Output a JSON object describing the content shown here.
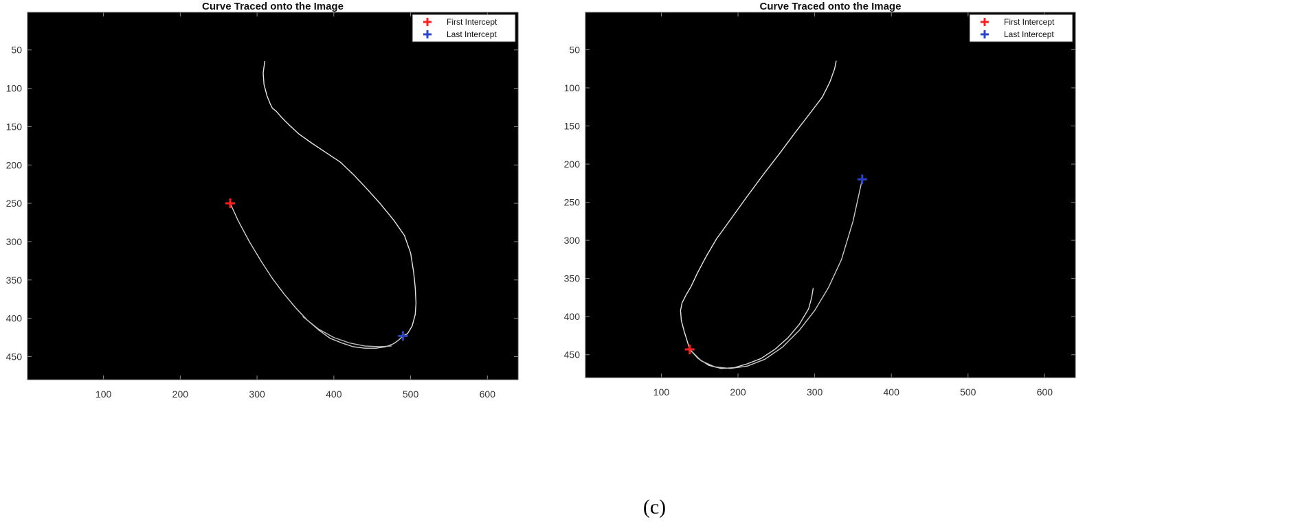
{
  "chart_data": [
    {
      "type": "line",
      "title": "Curve Traced onto the Image",
      "xlabel": "",
      "ylabel": "",
      "xlim": [
        1,
        640
      ],
      "ylim": [
        1,
        480
      ],
      "y_reversed": true,
      "xticks": [
        100,
        200,
        300,
        400,
        500,
        600
      ],
      "yticks": [
        50,
        100,
        150,
        200,
        250,
        300,
        350,
        400,
        450
      ],
      "background": "#000000",
      "grid": false,
      "legend_position": "top-right",
      "legend": [
        {
          "label": "First Intercept",
          "color": "#ff2020",
          "marker": "+"
        },
        {
          "label": "Last Intercept",
          "color": "#2a45c8",
          "marker": "+"
        }
      ],
      "points": {
        "first_intercept": {
          "x": 265,
          "y": 250
        },
        "last_intercept": {
          "x": 490,
          "y": 423
        }
      },
      "series": [
        {
          "color": "#e6e6e6",
          "x": [
            310,
            308,
            309,
            313,
            317,
            320,
            325,
            332,
            342,
            355,
            372,
            390,
            408,
            425,
            442,
            460,
            478,
            492,
            500,
            504,
            506,
            507,
            506,
            502,
            496,
            490
          ],
          "y": [
            65,
            80,
            95,
            110,
            120,
            126,
            130,
            138,
            148,
            160,
            172,
            184,
            196,
            212,
            230,
            250,
            272,
            292,
            315,
            340,
            360,
            380,
            395,
            410,
            420,
            423
          ]
        },
        {
          "color": "#cfcfcf",
          "x": [
            265,
            275,
            290,
            305,
            320,
            335,
            350,
            365,
            380,
            395,
            410,
            425,
            440,
            455,
            468,
            478,
            485,
            490
          ],
          "y": [
            250,
            272,
            300,
            325,
            348,
            368,
            386,
            402,
            415,
            426,
            432,
            437,
            439,
            439,
            437,
            433,
            428,
            423
          ]
        },
        {
          "color": "#bdbdbd",
          "x": [
            360,
            380,
            400,
            420,
            440,
            460,
            475
          ],
          "y": [
            398,
            414,
            425,
            432,
            436,
            437,
            436
          ]
        }
      ]
    },
    {
      "type": "line",
      "title": "Curve Traced onto the Image",
      "xlabel": "",
      "ylabel": "",
      "xlim": [
        1,
        640
      ],
      "ylim": [
        1,
        480
      ],
      "y_reversed": true,
      "xticks": [
        100,
        200,
        300,
        400,
        500,
        600
      ],
      "yticks": [
        50,
        100,
        150,
        200,
        250,
        300,
        350,
        400,
        450
      ],
      "background": "#000000",
      "grid": false,
      "legend_position": "top-right",
      "legend": [
        {
          "label": "First Intercept",
          "color": "#ff2020",
          "marker": "+"
        },
        {
          "label": "Last Intercept",
          "color": "#2a45c8",
          "marker": "+"
        }
      ],
      "points": {
        "first_intercept": {
          "x": 137,
          "y": 443
        },
        "last_intercept": {
          "x": 362,
          "y": 220
        }
      },
      "series": [
        {
          "color": "#e6e6e6",
          "x": [
            328,
            326,
            320,
            310,
            295,
            275,
            255,
            232,
            210,
            190,
            172,
            158,
            147,
            139,
            132,
            127,
            125,
            126,
            130,
            134,
            137
          ],
          "y": [
            65,
            75,
            92,
            112,
            132,
            158,
            185,
            215,
            245,
            273,
            298,
            322,
            343,
            360,
            372,
            382,
            392,
            405,
            420,
            433,
            443
          ]
        },
        {
          "color": "#dcdcdc",
          "x": [
            137,
            148,
            162,
            178,
            195,
            212,
            230,
            248,
            265,
            280,
            292,
            296,
            298
          ],
          "y": [
            443,
            455,
            464,
            468,
            467,
            462,
            455,
            443,
            428,
            410,
            390,
            375,
            363
          ]
        },
        {
          "color": "#c8c8c8",
          "x": [
            137,
            152,
            170,
            190,
            212,
            235,
            258,
            280,
            300,
            318,
            335,
            350,
            362
          ],
          "y": [
            443,
            458,
            466,
            468,
            465,
            456,
            440,
            418,
            392,
            362,
            325,
            275,
            220
          ]
        }
      ]
    }
  ],
  "caption": "(c)"
}
